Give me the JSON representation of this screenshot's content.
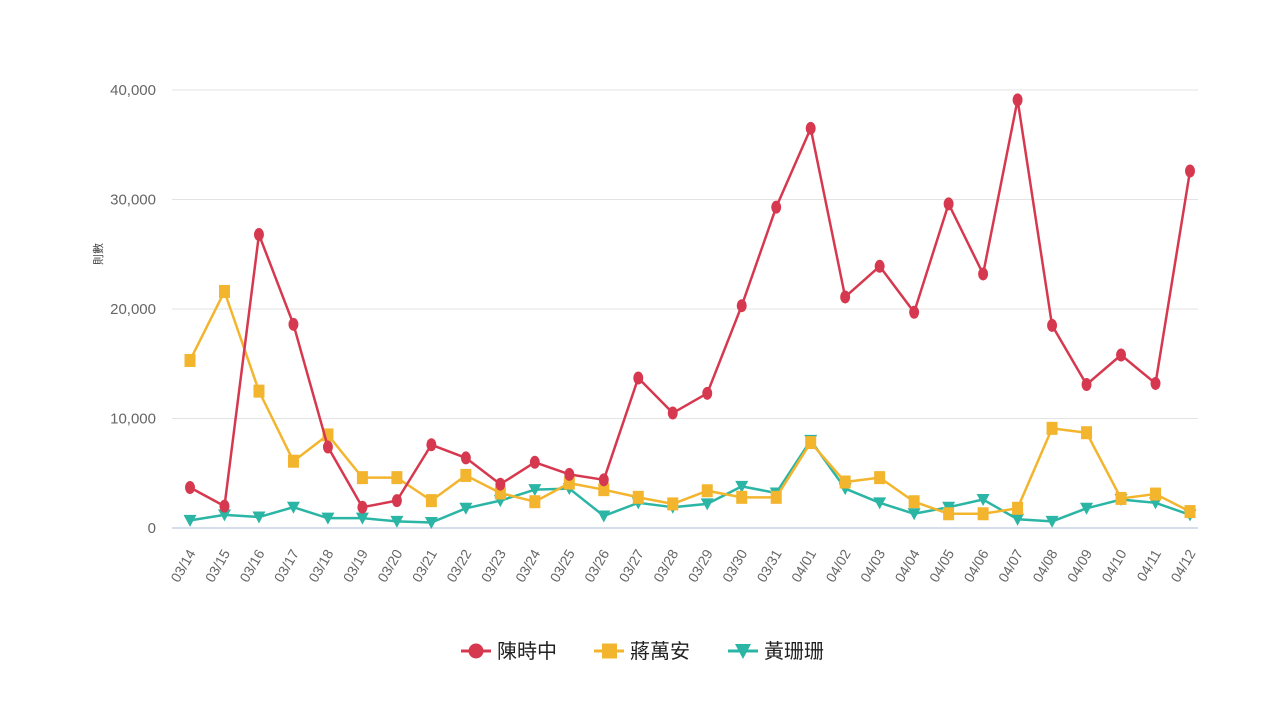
{
  "chart_data": {
    "type": "line",
    "title": "",
    "xlabel": "",
    "ylabel": "則數",
    "ylim": [
      0,
      40000
    ],
    "yticks": [
      0,
      10000,
      20000,
      30000,
      40000
    ],
    "ytick_labels": [
      "0",
      "10,000",
      "20,000",
      "30,000",
      "40,000"
    ],
    "grid": true,
    "legend_position": "bottom-center",
    "categories": [
      "03/14",
      "03/15",
      "03/16",
      "03/17",
      "03/18",
      "03/19",
      "03/20",
      "03/21",
      "03/22",
      "03/23",
      "03/24",
      "03/25",
      "03/26",
      "03/27",
      "03/28",
      "03/29",
      "03/30",
      "03/31",
      "04/01",
      "04/02",
      "04/03",
      "04/04",
      "04/05",
      "04/06",
      "04/07",
      "04/08",
      "04/09",
      "04/10",
      "04/11",
      "04/12"
    ],
    "series": [
      {
        "name": "陳時中",
        "color": "#d6394f",
        "marker": "circle",
        "values": [
          3700,
          2000,
          26800,
          18600,
          7400,
          1900,
          2500,
          7600,
          6400,
          4000,
          6000,
          4900,
          4400,
          13700,
          10500,
          12300,
          20300,
          29300,
          36500,
          21100,
          23900,
          19700,
          29600,
          23200,
          39100,
          18500,
          13100,
          15800,
          13200,
          32600
        ]
      },
      {
        "name": "蔣萬安",
        "color": "#f3b52e",
        "marker": "square",
        "values": [
          15300,
          21600,
          12500,
          6100,
          8500,
          4600,
          4600,
          2500,
          4800,
          3200,
          2400,
          4100,
          3500,
          2800,
          2200,
          3400,
          2800,
          2800,
          7800,
          4200,
          4600,
          2400,
          1300,
          1300,
          1800,
          9100,
          8700,
          2700,
          3100,
          1500
        ]
      },
      {
        "name": "黃珊珊",
        "color": "#2ab5a5",
        "marker": "triangle-down",
        "values": [
          700,
          1200,
          1000,
          1900,
          900,
          900,
          600,
          500,
          1800,
          2500,
          3500,
          3600,
          1100,
          2300,
          1900,
          2200,
          3800,
          3200,
          8000,
          3600,
          2300,
          1300,
          1900,
          2600,
          800,
          600,
          1800,
          2600,
          2300,
          1200
        ]
      }
    ]
  }
}
